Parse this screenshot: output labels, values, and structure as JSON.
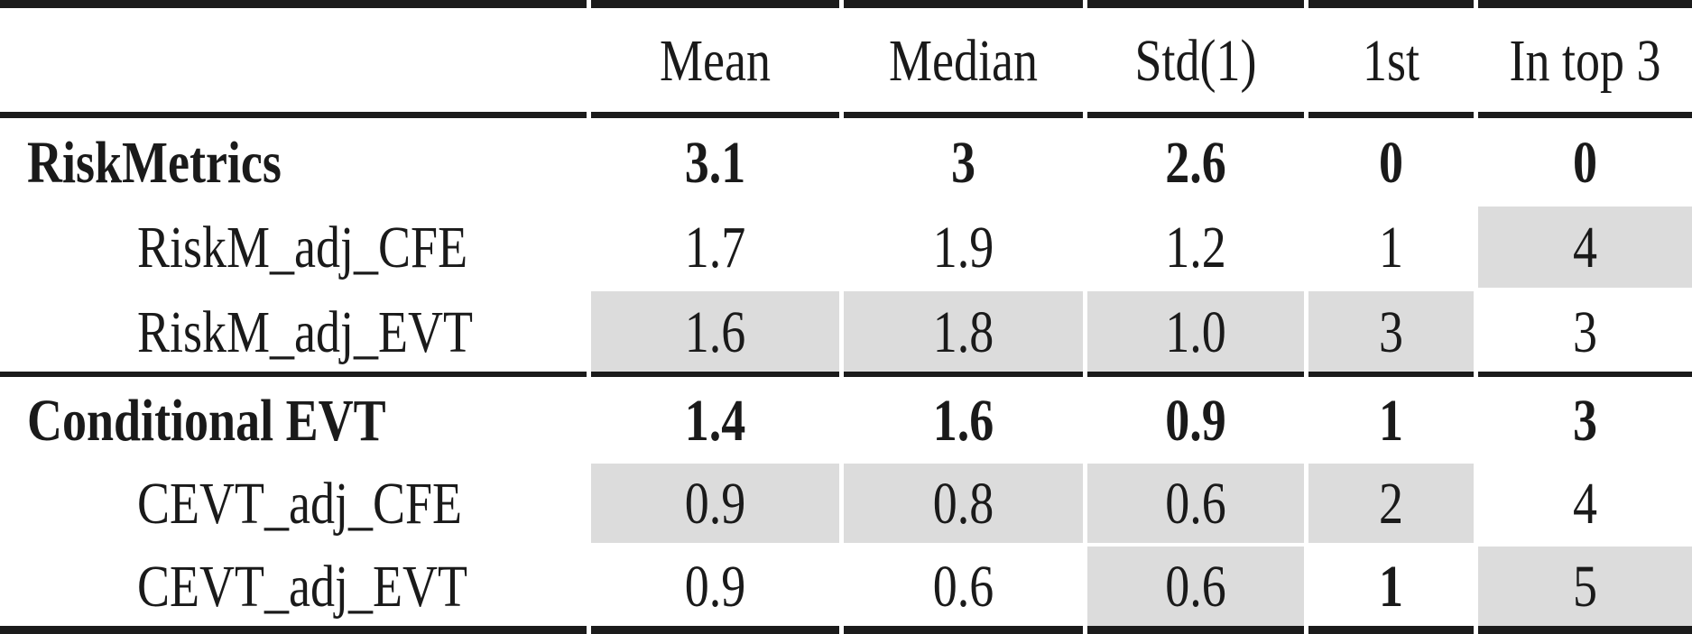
{
  "colors": {
    "shade": "#dcdcdc",
    "text": "#1a1a1a",
    "rule": "#1b1b1b",
    "background": "#ffffff"
  },
  "table": {
    "columns": [
      "",
      "Mean",
      "Median",
      "Std(1)",
      "1st",
      "In top 3"
    ],
    "rows": [
      {
        "label": "RiskMetrics",
        "indent": false,
        "bold": true,
        "cells": [
          {
            "text": "3.1",
            "shaded": false,
            "bold": true
          },
          {
            "text": "3",
            "shaded": false,
            "bold": true
          },
          {
            "text": "2.6",
            "shaded": false,
            "bold": true
          },
          {
            "text": "0",
            "shaded": false,
            "bold": true
          },
          {
            "text": "0",
            "shaded": false,
            "bold": true
          }
        ]
      },
      {
        "label": "RiskM_adj_CFE",
        "indent": true,
        "bold": false,
        "cells": [
          {
            "text": "1.7",
            "shaded": false,
            "bold": false
          },
          {
            "text": "1.9",
            "shaded": false,
            "bold": false
          },
          {
            "text": "1.2",
            "shaded": false,
            "bold": false
          },
          {
            "text": "1",
            "shaded": false,
            "bold": false
          },
          {
            "text": "4",
            "shaded": true,
            "bold": false
          }
        ]
      },
      {
        "label": "RiskM_adj_EVT",
        "indent": true,
        "bold": false,
        "cells": [
          {
            "text": "1.6",
            "shaded": true,
            "bold": false
          },
          {
            "text": "1.8",
            "shaded": true,
            "bold": false
          },
          {
            "text": "1.0",
            "shaded": true,
            "bold": false
          },
          {
            "text": "3",
            "shaded": true,
            "bold": false
          },
          {
            "text": "3",
            "shaded": false,
            "bold": false
          }
        ]
      },
      {
        "label": "Conditional EVT",
        "indent": false,
        "bold": true,
        "cells": [
          {
            "text": "1.4",
            "shaded": false,
            "bold": true
          },
          {
            "text": "1.6",
            "shaded": false,
            "bold": true
          },
          {
            "text": "0.9",
            "shaded": false,
            "bold": true
          },
          {
            "text": "1",
            "shaded": false,
            "bold": true
          },
          {
            "text": "3",
            "shaded": false,
            "bold": true
          }
        ]
      },
      {
        "label": "CEVT_adj_CFE",
        "indent": true,
        "bold": false,
        "cells": [
          {
            "text": "0.9",
            "shaded": true,
            "bold": false
          },
          {
            "text": "0.8",
            "shaded": true,
            "bold": false
          },
          {
            "text": "0.6",
            "shaded": true,
            "bold": false
          },
          {
            "text": "2",
            "shaded": true,
            "bold": false
          },
          {
            "text": "4",
            "shaded": false,
            "bold": false
          }
        ]
      },
      {
        "label": "CEVT_adj_EVT",
        "indent": true,
        "bold": false,
        "cells": [
          {
            "text": "0.9",
            "shaded": false,
            "bold": false
          },
          {
            "text": "0.6",
            "shaded": false,
            "bold": false
          },
          {
            "text": "0.6",
            "shaded": true,
            "bold": false
          },
          {
            "text": "1",
            "shaded": false,
            "bold": true
          },
          {
            "text": "5",
            "shaded": true,
            "bold": false
          }
        ]
      }
    ]
  },
  "chart_data": {
    "type": "table",
    "title": "",
    "columns": [
      "Mean",
      "Median",
      "Std(1)",
      "1st",
      "In top 3"
    ],
    "row_labels": [
      "RiskMetrics",
      "RiskM_adj_CFE",
      "RiskM_adj_EVT",
      "Conditional EVT",
      "CEVT_adj_CFE",
      "CEVT_adj_EVT"
    ],
    "values": [
      [
        3.1,
        3,
        2.6,
        0,
        0
      ],
      [
        1.7,
        1.9,
        1.2,
        1,
        4
      ],
      [
        1.6,
        1.8,
        1.0,
        3,
        3
      ],
      [
        1.4,
        1.6,
        0.9,
        1,
        3
      ],
      [
        0.9,
        0.8,
        0.6,
        2,
        4
      ],
      [
        0.9,
        0.6,
        0.6,
        1,
        5
      ]
    ]
  }
}
